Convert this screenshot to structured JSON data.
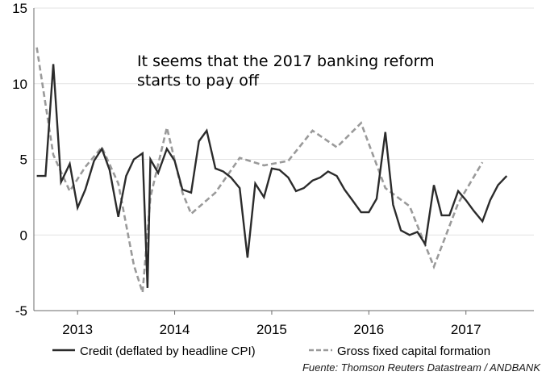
{
  "chart_data": {
    "type": "line",
    "title": "",
    "xlabel": "",
    "ylabel": "",
    "ylim": [
      -5,
      15
    ],
    "y_ticks": [
      "15",
      "10",
      "5",
      "0",
      "-5"
    ],
    "x_range": [
      2012.55,
      2017.7
    ],
    "x_ticks": [
      {
        "label": "2013",
        "x": 2013.0
      },
      {
        "label": "2014",
        "x": 2014.0
      },
      {
        "label": "2015",
        "x": 2015.0
      },
      {
        "label": "2016",
        "x": 2016.0
      },
      {
        "label": "2017",
        "x": 2017.0
      }
    ],
    "grid": true,
    "legend_position": "bottom",
    "annotation": [
      "It seems that the 2017 banking reform",
      "starts to pay off"
    ],
    "series": [
      {
        "name": "Credit (deflated by headline CPI)",
        "color": "#2b2b2b",
        "style": "solid",
        "x": [
          2012.58,
          2012.67,
          2012.75,
          2012.83,
          2012.92,
          2013.0,
          2013.08,
          2013.17,
          2013.25,
          2013.33,
          2013.42,
          2013.5,
          2013.58,
          2013.67,
          2013.72,
          2013.75,
          2013.83,
          2013.92,
          2014.0,
          2014.08,
          2014.17,
          2014.25,
          2014.33,
          2014.42,
          2014.5,
          2014.58,
          2014.67,
          2014.75,
          2014.83,
          2014.92,
          2015.0,
          2015.08,
          2015.17,
          2015.25,
          2015.33,
          2015.42,
          2015.5,
          2015.58,
          2015.67,
          2015.75,
          2015.83,
          2015.92,
          2016.0,
          2016.08,
          2016.17,
          2016.25,
          2016.33,
          2016.42,
          2016.5,
          2016.58,
          2016.67,
          2016.75,
          2016.83,
          2016.92,
          2017.0,
          2017.08,
          2017.17,
          2017.25,
          2017.33,
          2017.42
        ],
        "y": [
          3.9,
          3.9,
          11.3,
          3.5,
          4.7,
          1.8,
          3.0,
          4.9,
          5.7,
          4.3,
          1.2,
          3.9,
          5.0,
          5.4,
          -3.5,
          5.0,
          4.1,
          5.7,
          4.9,
          3.0,
          2.8,
          6.2,
          6.9,
          4.4,
          4.2,
          3.8,
          3.1,
          -1.5,
          3.4,
          2.5,
          4.4,
          4.3,
          3.8,
          2.9,
          3.1,
          3.6,
          3.8,
          4.2,
          3.9,
          3.0,
          2.3,
          1.5,
          1.5,
          2.4,
          6.8,
          2.0,
          0.3,
          0.0,
          0.2,
          -0.6,
          3.3,
          1.3,
          1.3,
          2.9,
          2.3,
          1.6,
          0.9,
          2.3,
          3.3,
          3.9
        ]
      },
      {
        "name": "Gross fixed capital formation",
        "color": "#9a9a9a",
        "style": "dashed",
        "x": [
          2012.58,
          2012.75,
          2012.92,
          2013.08,
          2013.25,
          2013.42,
          2013.58,
          2013.67,
          2013.75,
          2013.92,
          2014.08,
          2014.17,
          2014.42,
          2014.67,
          2014.92,
          2015.17,
          2015.42,
          2015.67,
          2015.92,
          2016.17,
          2016.42,
          2016.67,
          2016.92,
          2017.17
        ],
        "y": [
          12.4,
          5.3,
          2.9,
          4.5,
          5.8,
          3.4,
          -2.0,
          -3.8,
          2.5,
          7.1,
          2.8,
          1.4,
          2.8,
          5.1,
          4.6,
          4.9,
          6.9,
          5.8,
          7.4,
          3.1,
          1.9,
          -2.1,
          2.1,
          4.8
        ]
      }
    ]
  },
  "source": "Fuente: Thomson Reuters Datastream / ANDBANK"
}
